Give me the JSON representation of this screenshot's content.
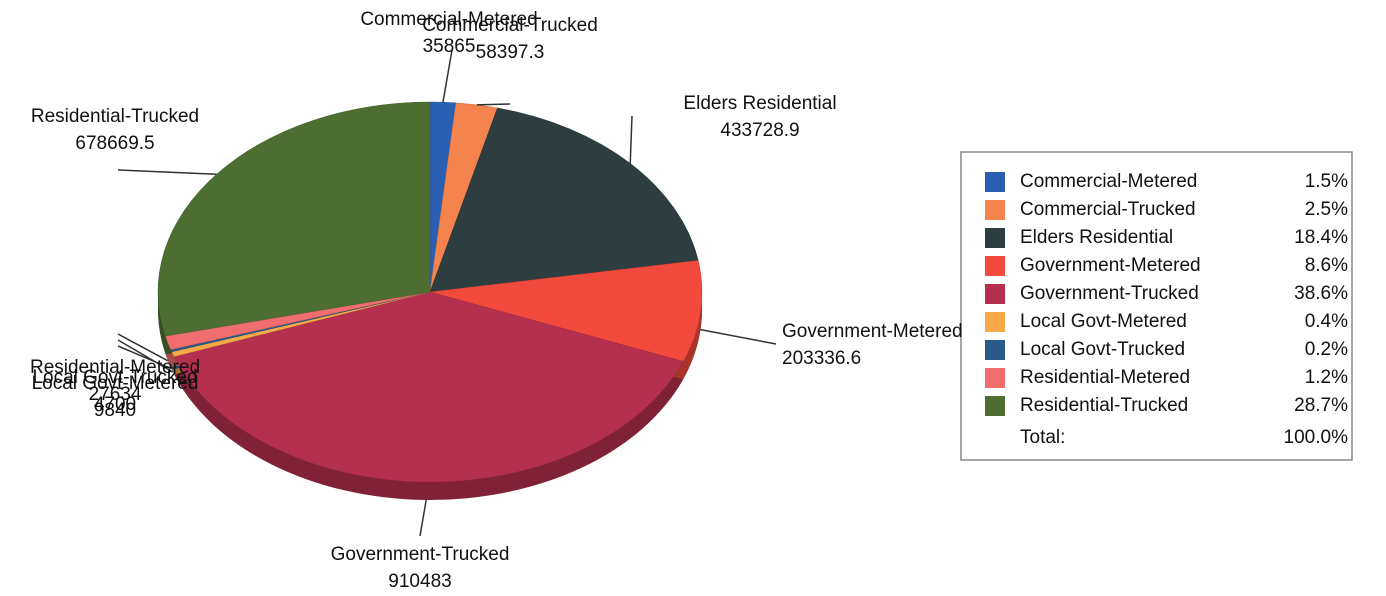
{
  "chart_data": {
    "type": "pie",
    "categories": [
      "Commercial-Metered",
      "Commercial-Trucked",
      "Elders Residential",
      "Government-Metered",
      "Government-Trucked",
      "Local Govt-Metered",
      "Local Govt-Trucked",
      "Residential-Metered",
      "Residential-Trucked"
    ],
    "values": [
      35865,
      58397.3,
      433728.9,
      203336.6,
      910483,
      9840,
      4700,
      27634,
      678669.5
    ],
    "colors": [
      "#2b5fb4",
      "#f5834e",
      "#2e3e40",
      "#f24a3c",
      "#b5304f",
      "#f7a94a",
      "#2a5a8c",
      "#f26d6d",
      "#4e6e31"
    ],
    "legend_percent_labels": [
      "1.5%",
      "2.5%",
      "18.4%",
      "8.6%",
      "38.6%",
      "0.4%",
      "0.2%",
      "1.2%",
      "28.7%"
    ],
    "total_label": "Total:",
    "total_percent_label": "100.0%"
  }
}
